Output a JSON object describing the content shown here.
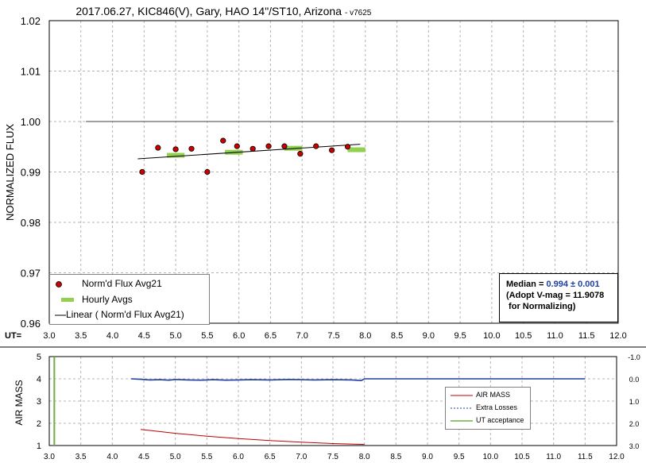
{
  "chart_data": [
    {
      "type": "scatter",
      "title": "2017.06.27, KIC846(V), Gary, HAO 14\"/ST10, Arizona",
      "title_suffix": "- v7625",
      "ylabel": "NORMALIZED FLUX",
      "xlabel_prefix": "UT=",
      "xlim": [
        3.0,
        12.0
      ],
      "ylim": [
        0.96,
        1.02
      ],
      "xticks": [
        "3.0",
        "3.5",
        "4.0",
        "4.5",
        "5.0",
        "5.5",
        "6.0",
        "6.5",
        "7.0",
        "7.5",
        "8.0",
        "8.5",
        "9.0",
        "9.5",
        "10.0",
        "10.5",
        "11.0",
        "11.5",
        "12.0"
      ],
      "yticks": [
        "0.96",
        "0.97",
        "0.98",
        "0.99",
        "1.00",
        "1.01",
        "1.02"
      ],
      "grid": true,
      "reference_line": {
        "y": 1.0,
        "x": [
          3.58,
          11.92
        ],
        "color": "#808080"
      },
      "series": [
        {
          "name": "Norm'd Flux Avg21",
          "kind": "points",
          "color": "#cc0000",
          "x": [
            4.47,
            4.72,
            5.0,
            5.25,
            5.5,
            5.75,
            5.97,
            6.22,
            6.47,
            6.72,
            6.97,
            7.22,
            7.47,
            7.72
          ],
          "y": [
            0.99,
            0.9948,
            0.9945,
            0.9946,
            0.99,
            0.9962,
            0.9951,
            0.9946,
            0.9951,
            0.9951,
            0.9936,
            0.9951,
            0.9943,
            0.995
          ]
        },
        {
          "name": "Hourly Avgs",
          "kind": "segments",
          "color": "#92d050",
          "x": [
            5.0,
            5.92,
            6.86,
            7.86
          ],
          "y": [
            0.9933,
            0.9939,
            0.9947,
            0.9944
          ],
          "halfwidth": 0.14
        },
        {
          "name": "Linear ( Norm'd Flux Avg21)",
          "kind": "line",
          "color": "#000000",
          "x": [
            4.4,
            7.92
          ],
          "y": [
            0.9926,
            0.9955
          ]
        }
      ],
      "legend": {
        "position": "bottom-left"
      },
      "annotation": {
        "median_label": "Median = ",
        "median_value": "0.994 ± 0.001",
        "line2": "(Adopt V-mag = 11.9078",
        "line3": " for Normalizing)"
      }
    },
    {
      "type": "line",
      "ylabel": "AIR MASS",
      "xlim": [
        3.0,
        12.0
      ],
      "ylim": [
        1,
        5
      ],
      "y2lim": [
        3.0,
        -1.0
      ],
      "xticks": [
        "3.0",
        "3.5",
        "4.0",
        "4.5",
        "5.0",
        "5.5",
        "6.0",
        "6.5",
        "7.0",
        "7.5",
        "8.0",
        "8.5",
        "9.0",
        "9.5",
        "10.0",
        "10.5",
        "11.0",
        "11.5",
        "12.0"
      ],
      "yticks": [
        "1",
        "2",
        "3",
        "4",
        "5"
      ],
      "y2ticks": [
        "3.0",
        "2.0",
        "1.0",
        "0.0",
        "-1.0"
      ],
      "grid": true,
      "series": [
        {
          "name": "AIR MASS",
          "color": "#c00000",
          "x": [
            4.45,
            4.75,
            5.0,
            5.5,
            6.0,
            6.5,
            7.0,
            7.5,
            8.0
          ],
          "y": [
            1.72,
            1.63,
            1.55,
            1.42,
            1.31,
            1.22,
            1.15,
            1.09,
            1.05
          ]
        },
        {
          "name": "Extra Losses",
          "color": "#1f3fa0",
          "axis": "right",
          "x": [
            4.3,
            4.45,
            4.6,
            4.75,
            4.9,
            5.0,
            5.2,
            5.4,
            5.6,
            5.8,
            6.0,
            6.2,
            6.5,
            6.8,
            7.0,
            7.2,
            7.5,
            7.8,
            7.95,
            8.0,
            9.0,
            10.0,
            11.5
          ],
          "y": [
            0.0,
            0.02,
            0.05,
            0.04,
            0.06,
            0.03,
            0.05,
            0.06,
            0.04,
            0.06,
            0.05,
            0.04,
            0.05,
            0.03,
            0.04,
            0.05,
            0.04,
            0.05,
            0.08,
            0.0,
            0.0,
            0.0,
            0.0
          ]
        },
        {
          "name": "UT acceptance",
          "color": "#70ad47",
          "x": [
            3.08,
            3.08
          ],
          "y": [
            1,
            5
          ]
        }
      ],
      "legend": {
        "position": "right"
      }
    }
  ]
}
